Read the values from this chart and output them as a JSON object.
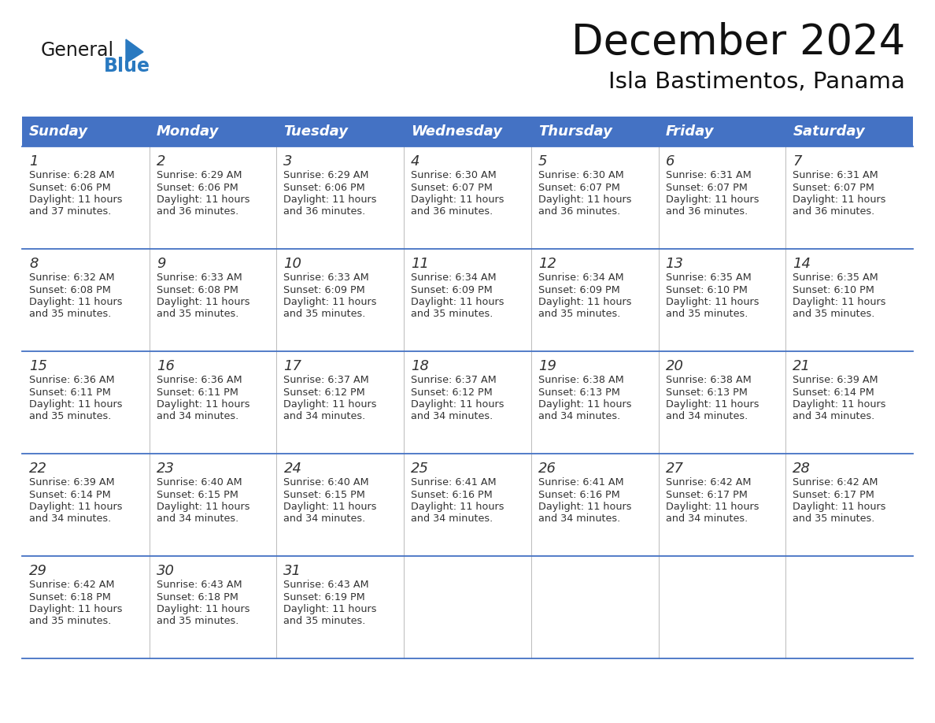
{
  "title": "December 2024",
  "subtitle": "Isla Bastimentos, Panama",
  "header_color": "#4472C4",
  "header_text_color": "#FFFFFF",
  "cell_bg_color": "#FFFFFF",
  "border_color": "#4472C4",
  "text_color": "#333333",
  "days_of_week": [
    "Sunday",
    "Monday",
    "Tuesday",
    "Wednesday",
    "Thursday",
    "Friday",
    "Saturday"
  ],
  "calendar_data": [
    [
      {
        "day": 1,
        "sunrise": "6:28 AM",
        "sunset": "6:06 PM",
        "daylight_hours": 11,
        "daylight_minutes": 37
      },
      {
        "day": 2,
        "sunrise": "6:29 AM",
        "sunset": "6:06 PM",
        "daylight_hours": 11,
        "daylight_minutes": 36
      },
      {
        "day": 3,
        "sunrise": "6:29 AM",
        "sunset": "6:06 PM",
        "daylight_hours": 11,
        "daylight_minutes": 36
      },
      {
        "day": 4,
        "sunrise": "6:30 AM",
        "sunset": "6:07 PM",
        "daylight_hours": 11,
        "daylight_minutes": 36
      },
      {
        "day": 5,
        "sunrise": "6:30 AM",
        "sunset": "6:07 PM",
        "daylight_hours": 11,
        "daylight_minutes": 36
      },
      {
        "day": 6,
        "sunrise": "6:31 AM",
        "sunset": "6:07 PM",
        "daylight_hours": 11,
        "daylight_minutes": 36
      },
      {
        "day": 7,
        "sunrise": "6:31 AM",
        "sunset": "6:07 PM",
        "daylight_hours": 11,
        "daylight_minutes": 36
      }
    ],
    [
      {
        "day": 8,
        "sunrise": "6:32 AM",
        "sunset": "6:08 PM",
        "daylight_hours": 11,
        "daylight_minutes": 35
      },
      {
        "day": 9,
        "sunrise": "6:33 AM",
        "sunset": "6:08 PM",
        "daylight_hours": 11,
        "daylight_minutes": 35
      },
      {
        "day": 10,
        "sunrise": "6:33 AM",
        "sunset": "6:09 PM",
        "daylight_hours": 11,
        "daylight_minutes": 35
      },
      {
        "day": 11,
        "sunrise": "6:34 AM",
        "sunset": "6:09 PM",
        "daylight_hours": 11,
        "daylight_minutes": 35
      },
      {
        "day": 12,
        "sunrise": "6:34 AM",
        "sunset": "6:09 PM",
        "daylight_hours": 11,
        "daylight_minutes": 35
      },
      {
        "day": 13,
        "sunrise": "6:35 AM",
        "sunset": "6:10 PM",
        "daylight_hours": 11,
        "daylight_minutes": 35
      },
      {
        "day": 14,
        "sunrise": "6:35 AM",
        "sunset": "6:10 PM",
        "daylight_hours": 11,
        "daylight_minutes": 35
      }
    ],
    [
      {
        "day": 15,
        "sunrise": "6:36 AM",
        "sunset": "6:11 PM",
        "daylight_hours": 11,
        "daylight_minutes": 35
      },
      {
        "day": 16,
        "sunrise": "6:36 AM",
        "sunset": "6:11 PM",
        "daylight_hours": 11,
        "daylight_minutes": 34
      },
      {
        "day": 17,
        "sunrise": "6:37 AM",
        "sunset": "6:12 PM",
        "daylight_hours": 11,
        "daylight_minutes": 34
      },
      {
        "day": 18,
        "sunrise": "6:37 AM",
        "sunset": "6:12 PM",
        "daylight_hours": 11,
        "daylight_minutes": 34
      },
      {
        "day": 19,
        "sunrise": "6:38 AM",
        "sunset": "6:13 PM",
        "daylight_hours": 11,
        "daylight_minutes": 34
      },
      {
        "day": 20,
        "sunrise": "6:38 AM",
        "sunset": "6:13 PM",
        "daylight_hours": 11,
        "daylight_minutes": 34
      },
      {
        "day": 21,
        "sunrise": "6:39 AM",
        "sunset": "6:14 PM",
        "daylight_hours": 11,
        "daylight_minutes": 34
      }
    ],
    [
      {
        "day": 22,
        "sunrise": "6:39 AM",
        "sunset": "6:14 PM",
        "daylight_hours": 11,
        "daylight_minutes": 34
      },
      {
        "day": 23,
        "sunrise": "6:40 AM",
        "sunset": "6:15 PM",
        "daylight_hours": 11,
        "daylight_minutes": 34
      },
      {
        "day": 24,
        "sunrise": "6:40 AM",
        "sunset": "6:15 PM",
        "daylight_hours": 11,
        "daylight_minutes": 34
      },
      {
        "day": 25,
        "sunrise": "6:41 AM",
        "sunset": "6:16 PM",
        "daylight_hours": 11,
        "daylight_minutes": 34
      },
      {
        "day": 26,
        "sunrise": "6:41 AM",
        "sunset": "6:16 PM",
        "daylight_hours": 11,
        "daylight_minutes": 34
      },
      {
        "day": 27,
        "sunrise": "6:42 AM",
        "sunset": "6:17 PM",
        "daylight_hours": 11,
        "daylight_minutes": 34
      },
      {
        "day": 28,
        "sunrise": "6:42 AM",
        "sunset": "6:17 PM",
        "daylight_hours": 11,
        "daylight_minutes": 35
      }
    ],
    [
      {
        "day": 29,
        "sunrise": "6:42 AM",
        "sunset": "6:18 PM",
        "daylight_hours": 11,
        "daylight_minutes": 35
      },
      {
        "day": 30,
        "sunrise": "6:43 AM",
        "sunset": "6:18 PM",
        "daylight_hours": 11,
        "daylight_minutes": 35
      },
      {
        "day": 31,
        "sunrise": "6:43 AM",
        "sunset": "6:19 PM",
        "daylight_hours": 11,
        "daylight_minutes": 35
      },
      null,
      null,
      null,
      null
    ]
  ],
  "logo_text1": "General",
  "logo_text2": "Blue",
  "logo_color1": "#1a1a1a",
  "logo_color2": "#2979C0",
  "logo_triangle_color": "#2979C0",
  "fig_width": 11.88,
  "fig_height": 9.18,
  "dpi": 100
}
